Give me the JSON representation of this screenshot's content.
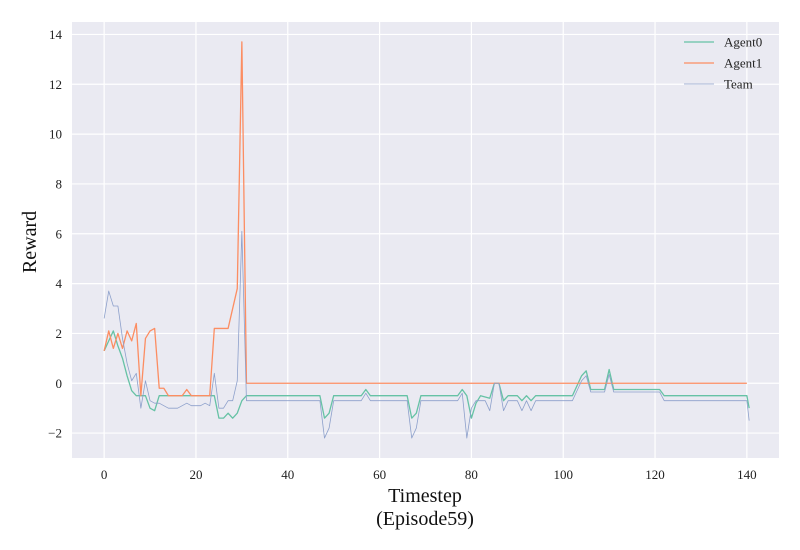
{
  "chart_data": {
    "type": "line",
    "xlabel": "Timestep",
    "xlabel_sub": "(Episode59)",
    "ylabel": "Reward",
    "xlim": [
      -7,
      147
    ],
    "ylim": [
      -3,
      14.5
    ],
    "xticks": [
      0,
      20,
      40,
      60,
      80,
      100,
      120,
      140
    ],
    "yticks": [
      -2,
      0,
      2,
      4,
      6,
      8,
      10,
      12,
      14
    ],
    "ytick_labels": [
      "−2",
      "0",
      "2",
      "4",
      "6",
      "8",
      "10",
      "12",
      "14"
    ],
    "grid": true,
    "legend_position": "top-right",
    "background": "#eaeaf2",
    "series": [
      {
        "name": "Agent0",
        "color": "#66c2a5",
        "points": [
          [
            0,
            1.3
          ],
          [
            1,
            1.7
          ],
          [
            2,
            2.1
          ],
          [
            3,
            1.5
          ],
          [
            4,
            1.0
          ],
          [
            5,
            0.3
          ],
          [
            6,
            -0.3
          ],
          [
            7,
            -0.5
          ],
          [
            9,
            -0.5
          ],
          [
            10,
            -1.0
          ],
          [
            11,
            -1.1
          ],
          [
            12,
            -0.5
          ],
          [
            24,
            -0.5
          ],
          [
            25,
            -1.4
          ],
          [
            26,
            -1.4
          ],
          [
            27,
            -1.2
          ],
          [
            28,
            -1.4
          ],
          [
            29,
            -1.2
          ],
          [
            30,
            -0.7
          ],
          [
            31,
            -0.5
          ],
          [
            47,
            -0.5
          ],
          [
            48,
            -1.4
          ],
          [
            49,
            -1.2
          ],
          [
            50,
            -0.5
          ],
          [
            56,
            -0.5
          ],
          [
            57,
            -0.25
          ],
          [
            58,
            -0.5
          ],
          [
            66,
            -0.5
          ],
          [
            67,
            -1.4
          ],
          [
            68,
            -1.2
          ],
          [
            69,
            -0.5
          ],
          [
            77,
            -0.5
          ],
          [
            78,
            -0.25
          ],
          [
            79,
            -0.5
          ],
          [
            80,
            -1.4
          ],
          [
            81,
            -0.8
          ],
          [
            82,
            -0.5
          ],
          [
            84,
            -0.6
          ],
          [
            85,
            0.0
          ],
          [
            86,
            0.0
          ],
          [
            87,
            -0.7
          ],
          [
            88,
            -0.5
          ],
          [
            90,
            -0.5
          ],
          [
            91,
            -0.7
          ],
          [
            92,
            -0.5
          ],
          [
            93,
            -0.7
          ],
          [
            94,
            -0.5
          ],
          [
            102,
            -0.5
          ],
          [
            103,
            -0.1
          ],
          [
            104,
            0.3
          ],
          [
            105,
            0.5
          ],
          [
            106,
            -0.25
          ],
          [
            109,
            -0.25
          ],
          [
            110,
            0.55
          ],
          [
            111,
            -0.25
          ],
          [
            121,
            -0.25
          ],
          [
            122,
            -0.5
          ],
          [
            140,
            -0.5
          ],
          [
            140.5,
            -1.0
          ]
        ]
      },
      {
        "name": "Agent1",
        "color": "#fc8d62",
        "points": [
          [
            0,
            1.3
          ],
          [
            1,
            2.1
          ],
          [
            2,
            1.4
          ],
          [
            3,
            2.0
          ],
          [
            4,
            1.4
          ],
          [
            5,
            2.1
          ],
          [
            6,
            1.7
          ],
          [
            7,
            2.4
          ],
          [
            8,
            -0.5
          ],
          [
            9,
            1.8
          ],
          [
            10,
            2.1
          ],
          [
            11,
            2.2
          ],
          [
            12,
            -0.2
          ],
          [
            13,
            -0.2
          ],
          [
            14,
            -0.5
          ],
          [
            17,
            -0.5
          ],
          [
            18,
            -0.25
          ],
          [
            19,
            -0.5
          ],
          [
            23,
            -0.5
          ],
          [
            24,
            2.2
          ],
          [
            27,
            2.2
          ],
          [
            29,
            3.8
          ],
          [
            30,
            13.7
          ],
          [
            31,
            0.0
          ],
          [
            140,
            0.0
          ]
        ]
      },
      {
        "name": "Team",
        "color": "#8da0cb",
        "points": [
          [
            0,
            2.6
          ],
          [
            1,
            3.7
          ],
          [
            2,
            3.1
          ],
          [
            3,
            3.1
          ],
          [
            4,
            1.8
          ],
          [
            5,
            0.8
          ],
          [
            6,
            0.1
          ],
          [
            7,
            0.4
          ],
          [
            8,
            -1.0
          ],
          [
            9,
            0.1
          ],
          [
            10,
            -0.7
          ],
          [
            11,
            -0.8
          ],
          [
            12,
            -0.8
          ],
          [
            13,
            -0.9
          ],
          [
            14,
            -1.0
          ],
          [
            16,
            -1.0
          ],
          [
            17,
            -0.9
          ],
          [
            18,
            -0.8
          ],
          [
            19,
            -0.9
          ],
          [
            21,
            -0.9
          ],
          [
            22,
            -0.8
          ],
          [
            23,
            -0.9
          ],
          [
            24,
            0.4
          ],
          [
            25,
            -1.0
          ],
          [
            26,
            -1.0
          ],
          [
            27,
            -0.7
          ],
          [
            28,
            -0.7
          ],
          [
            29,
            0.1
          ],
          [
            30,
            6.1
          ],
          [
            31,
            -0.7
          ],
          [
            47,
            -0.7
          ],
          [
            48,
            -2.2
          ],
          [
            49,
            -1.8
          ],
          [
            50,
            -0.7
          ],
          [
            56,
            -0.7
          ],
          [
            57,
            -0.4
          ],
          [
            58,
            -0.7
          ],
          [
            66,
            -0.7
          ],
          [
            67,
            -2.2
          ],
          [
            68,
            -1.8
          ],
          [
            69,
            -0.7
          ],
          [
            77,
            -0.7
          ],
          [
            78,
            -0.4
          ],
          [
            79,
            -2.2
          ],
          [
            80,
            -1.0
          ],
          [
            81,
            -0.7
          ],
          [
            83,
            -0.7
          ],
          [
            84,
            -1.1
          ],
          [
            85,
            0.0
          ],
          [
            86,
            0.0
          ],
          [
            87,
            -1.1
          ],
          [
            88,
            -0.7
          ],
          [
            90,
            -0.7
          ],
          [
            91,
            -1.1
          ],
          [
            92,
            -0.7
          ],
          [
            93,
            -1.1
          ],
          [
            94,
            -0.7
          ],
          [
            102,
            -0.7
          ],
          [
            103,
            -0.3
          ],
          [
            104,
            0.1
          ],
          [
            105,
            0.3
          ],
          [
            106,
            -0.35
          ],
          [
            109,
            -0.35
          ],
          [
            110,
            0.35
          ],
          [
            111,
            -0.35
          ],
          [
            121,
            -0.35
          ],
          [
            122,
            -0.7
          ],
          [
            140,
            -0.7
          ],
          [
            140.5,
            -1.5
          ]
        ]
      }
    ]
  }
}
